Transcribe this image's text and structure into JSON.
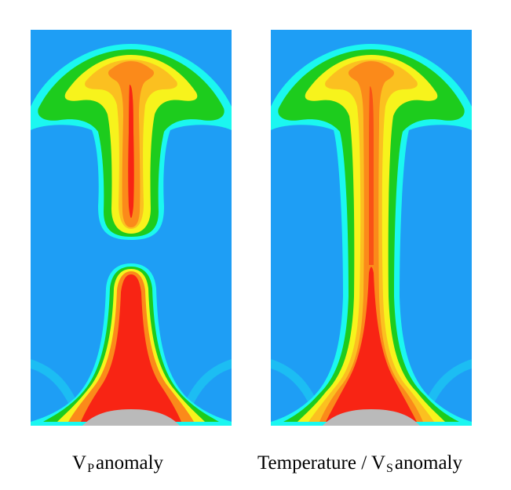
{
  "panels": [
    {
      "id": "vp",
      "caption": {
        "main": "V",
        "sub": "P",
        "rest": "anomaly"
      },
      "plume": "detached"
    },
    {
      "id": "temperature-vs",
      "caption": {
        "main": "Temperature / V",
        "sub": "S",
        "rest": "anomaly"
      },
      "plume": "continuous"
    }
  ],
  "colors": {
    "background": "#1e9ef5",
    "cyan": "#1bf7f0",
    "green": "#1dcc1d",
    "yellow": "#f7f31c",
    "light_orange": "#fbc020",
    "orange": "#fb8a1a",
    "red": "#f82414",
    "core": "#bababa"
  }
}
